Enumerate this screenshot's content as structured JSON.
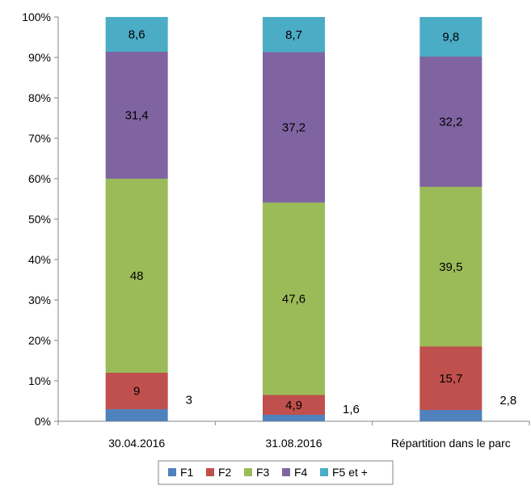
{
  "chart_data": {
    "type": "bar",
    "stacked": true,
    "categories": [
      "30.04.2016",
      "31.08.2016",
      "Répartition dans le parc"
    ],
    "series": [
      {
        "name": "F1",
        "values": [
          3,
          1.6,
          2.8
        ],
        "labels": [
          "3",
          "1,6",
          "2,8"
        ],
        "color": "#4f81bd"
      },
      {
        "name": "F2",
        "values": [
          9,
          4.9,
          15.7
        ],
        "labels": [
          "9",
          "4,9",
          "15,7"
        ],
        "color": "#c0504d"
      },
      {
        "name": "F3",
        "values": [
          48,
          47.6,
          39.5
        ],
        "labels": [
          "48",
          "47,6",
          "39,5"
        ],
        "color": "#9bbb59"
      },
      {
        "name": "F4",
        "values": [
          31.4,
          37.2,
          32.2
        ],
        "labels": [
          "31,4",
          "37,2",
          "32,2"
        ],
        "color": "#8064a2"
      },
      {
        "name": "F5 et +",
        "values": [
          8.6,
          8.7,
          9.8
        ],
        "labels": [
          "8,6",
          "8,7",
          "9,8"
        ],
        "color": "#4bacc6"
      }
    ],
    "y_ticks": [
      "0%",
      "10%",
      "20%",
      "30%",
      "40%",
      "50%",
      "60%",
      "70%",
      "80%",
      "90%",
      "100%"
    ],
    "ylim": [
      0,
      100
    ],
    "grid": false,
    "legend_position": "bottom",
    "title": "",
    "xlabel": "",
    "ylabel": ""
  }
}
